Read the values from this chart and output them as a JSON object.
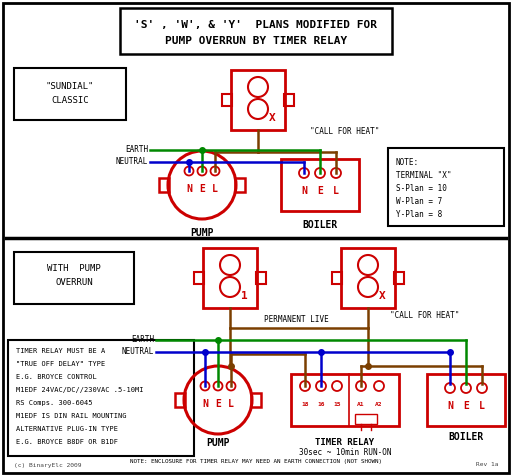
{
  "title_line1": "'S' , 'W', & 'Y'  PLANS MODIFIED FOR",
  "title_line2": "PUMP OVERRUN BY TIMER RELAY",
  "bg_color": "#ffffff",
  "red": "#cc0000",
  "green": "#008800",
  "blue": "#0000cc",
  "brown": "#7B3F00",
  "black": "#000000",
  "top_section": {
    "sundial_label": "\"SUNDIAL\"\nCLASSIC",
    "pump_label": "PUMP",
    "boiler_label": "BOILER",
    "call_for_heat": "\"CALL FOR HEAT\"",
    "earth_label": "EARTH",
    "neutral_label": "NEUTRAL",
    "note_text": "NOTE:\nTERMINAL \"X\"\nS-Plan = 10\nW-Plan = 7\nY-Plan = 8"
  },
  "bottom_section": {
    "with_pump_label": "WITH  PUMP\nOVERRUN",
    "pump_label": "PUMP",
    "timer_label": "TIMER RELAY\n30sec ~ 10min RUN-ON",
    "boiler_label": "BOILER",
    "permanent_live": "PERMANENT LIVE",
    "call_for_heat": "\"CALL FOR HEAT\"",
    "earth_label": "EARTH",
    "neutral_label": "NEUTRAL",
    "timer_note": "NOTE: ENCLOSURE FOR TIMER RELAY MAY NEED AN EARTH CONNECTION (NOT SHOWN)",
    "relay_info_lines": [
      "TIMER RELAY MUST BE A",
      "\"TRUE OFF DELAY\" TYPE",
      "E.G. BROYCE CONTROL",
      "M1EDF 24VAC/DC//230VAC .5-10MI",
      "RS Comps. 300-6045",
      "M1EDF IS DIN RAIL MOUNTING",
      "ALTERNATIVE PLUG-IN TYPE",
      "E.G. BROYCE B8DF OR B1DF"
    ]
  },
  "footer_left": "(c) BinaryElc 2009",
  "footer_right": "Rev 1a"
}
